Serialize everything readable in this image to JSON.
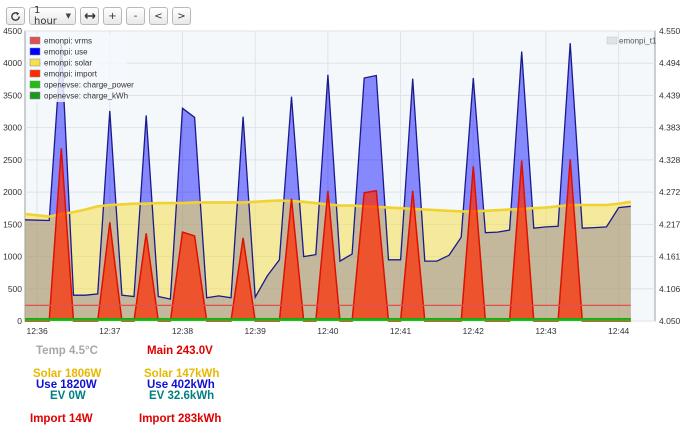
{
  "toolbar": {
    "refresh_icon": "refresh-icon",
    "range_value": "1 hour",
    "expand_icon": "expand-horizontal-icon",
    "zoom_in_label": "+",
    "zoom_out_label": "-",
    "prev_label": "<",
    "next_label": ">"
  },
  "colors": {
    "vrms": "#e05050",
    "use": "#0000ff",
    "solar": "#f5df4d",
    "import": "#ff2a00",
    "ev_power": "#20c010",
    "ev_kwh": "#1a9a1a",
    "temp": "#a8a8a8",
    "main": "#e00000",
    "stat_solar": "#e8b800",
    "stat_use": "#1010d0",
    "stat_ev": "#008080",
    "stat_import": "#e00000"
  },
  "chart_data": {
    "type": "area",
    "x": [
      "12:35:50",
      "12:36:10",
      "12:36:20",
      "12:36:30",
      "12:36:40",
      "12:36:50",
      "12:37:00",
      "12:37:10",
      "12:37:20",
      "12:37:30",
      "12:37:40",
      "12:37:50",
      "12:38:00",
      "12:38:10",
      "12:38:20",
      "12:38:30",
      "12:38:40",
      "12:38:50",
      "12:39:00",
      "12:39:10",
      "12:39:20",
      "12:39:30",
      "12:39:40",
      "12:39:50",
      "12:40:00",
      "12:40:10",
      "12:40:20",
      "12:40:30",
      "12:40:40",
      "12:40:50",
      "12:41:00",
      "12:41:10",
      "12:41:20",
      "12:41:30",
      "12:41:40",
      "12:41:50",
      "12:42:00",
      "12:42:10",
      "12:42:20",
      "12:42:30",
      "12:42:40",
      "12:42:50",
      "12:43:00",
      "12:43:10",
      "12:43:20",
      "12:43:30",
      "12:43:40",
      "12:43:50",
      "12:44:00",
      "12:44:10"
    ],
    "xticks": [
      "12:36",
      "12:37",
      "12:38",
      "12:39",
      "12:40",
      "12:41",
      "12:42",
      "12:43",
      "12:44"
    ],
    "xlim": [
      "12:35:50",
      "12:44:30"
    ],
    "ylim": [
      0,
      4500
    ],
    "yticks": [
      0,
      500,
      1000,
      1500,
      2000,
      2500,
      3000,
      3500,
      4000,
      4500
    ],
    "y2lim": [
      4.05,
      4.55
    ],
    "y2ticks": [
      "4.050",
      "4.106",
      "4.161",
      "4.217",
      "4.272",
      "4.328",
      "4.383",
      "4.439",
      "4.494",
      "4.550"
    ],
    "legend_position": "top-left",
    "legend_right_label": "emonpi_t1",
    "series": [
      {
        "name": "emonpi: vrms",
        "color_key": "vrms",
        "values": [
          243,
          243,
          243,
          243,
          243,
          243,
          243,
          243,
          243,
          243,
          243,
          243,
          243,
          243,
          243,
          243,
          243,
          243,
          243,
          243,
          243,
          243,
          243,
          243,
          243,
          243,
          243,
          243,
          243,
          243,
          243,
          243,
          243,
          243,
          243,
          243,
          243,
          243,
          243,
          243,
          243,
          243,
          243,
          243,
          243,
          243,
          243,
          243,
          243,
          243
        ]
      },
      {
        "name": "emonpi: use",
        "color_key": "use",
        "values": [
          1570,
          1560,
          4300,
          400,
          400,
          420,
          3260,
          400,
          380,
          3190,
          380,
          340,
          3300,
          3160,
          360,
          390,
          360,
          3170,
          370,
          700,
          950,
          3480,
          1000,
          1030,
          3820,
          930,
          1040,
          3770,
          3810,
          950,
          950,
          3760,
          930,
          930,
          1020,
          1300,
          3770,
          1370,
          1380,
          1410,
          4180,
          1440,
          1460,
          1470,
          4310,
          1440,
          1450,
          1460,
          1760,
          1780
        ]
      },
      {
        "name": "emonpi: solar",
        "color_key": "solar",
        "values": [
          1660,
          1620,
          1660,
          1690,
          1730,
          1780,
          1800,
          1810,
          1820,
          1820,
          1830,
          1830,
          1830,
          1840,
          1840,
          1840,
          1840,
          1840,
          1850,
          1860,
          1870,
          1860,
          1850,
          1830,
          1810,
          1790,
          1790,
          1780,
          1770,
          1760,
          1750,
          1740,
          1730,
          1720,
          1710,
          1700,
          1700,
          1710,
          1720,
          1730,
          1740,
          1750,
          1760,
          1780,
          1800,
          1800,
          1800,
          1800,
          1820,
          1850
        ]
      },
      {
        "name": "emonpi: import",
        "color_key": "import",
        "values": [
          0,
          0,
          2680,
          0,
          0,
          0,
          1530,
          0,
          0,
          1360,
          0,
          0,
          1380,
          1320,
          0,
          0,
          0,
          1290,
          0,
          0,
          0,
          1900,
          0,
          0,
          2020,
          0,
          0,
          1990,
          2020,
          0,
          0,
          2020,
          0,
          0,
          0,
          0,
          2400,
          0,
          0,
          0,
          2490,
          0,
          0,
          0,
          2510,
          0,
          0,
          0,
          0,
          0
        ]
      },
      {
        "name": "openevse: charge_power",
        "color_key": "ev_power",
        "values": [
          0,
          0,
          0,
          0,
          0,
          0,
          0,
          0,
          0,
          0,
          0,
          0,
          0,
          0,
          0,
          0,
          0,
          0,
          0,
          0,
          0,
          0,
          0,
          0,
          0,
          0,
          0,
          0,
          0,
          0,
          0,
          0,
          0,
          0,
          0,
          0,
          0,
          0,
          0,
          0,
          0,
          0,
          0,
          0,
          0,
          0,
          0,
          0,
          0,
          0
        ]
      },
      {
        "name": "openevse: charge_kWh",
        "color_key": "ev_kwh",
        "values": [
          32.6,
          32.6,
          32.6,
          32.6,
          32.6,
          32.6,
          32.6,
          32.6,
          32.6,
          32.6,
          32.6,
          32.6,
          32.6,
          32.6,
          32.6,
          32.6,
          32.6,
          32.6,
          32.6,
          32.6,
          32.6,
          32.6,
          32.6,
          32.6,
          32.6,
          32.6,
          32.6,
          32.6,
          32.6,
          32.6,
          32.6,
          32.6,
          32.6,
          32.6,
          32.6,
          32.6,
          32.6,
          32.6,
          32.6,
          32.6,
          32.6,
          32.6,
          32.6,
          32.6,
          32.6,
          32.6,
          32.6,
          32.6,
          32.6,
          32.6
        ]
      }
    ]
  },
  "stats": {
    "temp": "Temp 4.5°C",
    "main": "Main 243.0V",
    "solar_w": "Solar 1806W",
    "solar_kwh": "Solar 147kWh",
    "use_w": "Use 1820W",
    "use_kwh": "Use 402kWh",
    "ev_w": "EV 0W",
    "ev_kwh": "EV 32.6kWh",
    "import_w": "Import 14W",
    "import_kwh": "Import 283kWh"
  }
}
